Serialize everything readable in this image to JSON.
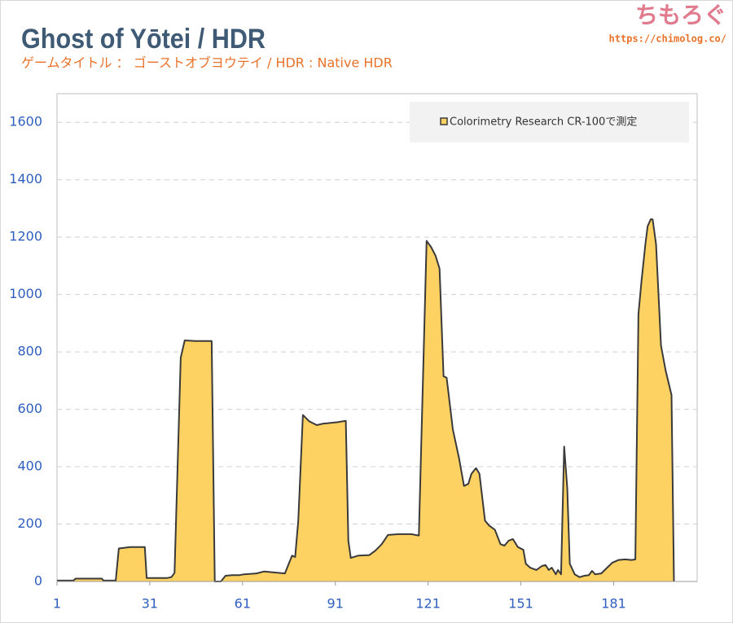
{
  "chart_data": {
    "type": "area",
    "title": "Ghost of Yōtei / HDR",
    "subtitle": "ゲームタイトル ： ゴーストオブヨウテイ / HDR : Native HDR",
    "branding": {
      "logo": "ちもろぐ",
      "url": "https://chimolog.co/"
    },
    "x": [
      1,
      6.3,
      7,
      15.5,
      16,
      20,
      21,
      24.7,
      29.4,
      30,
      36.5,
      38,
      39,
      41,
      42.3,
      45.7,
      51,
      52,
      54,
      55.5,
      57.6,
      60,
      61.5,
      65.5,
      68,
      70.7,
      74.7,
      77,
      78,
      79,
      80.5,
      82.6,
      85,
      87,
      91.8,
      94.4,
      95.2,
      96,
      98.4,
      102,
      104,
      106,
      108,
      111.5,
      115.5,
      118,
      120.5,
      122,
      123.4,
      124.7,
      126,
      127,
      129,
      131,
      132.6,
      134,
      135,
      136.5,
      137.6,
      139.4,
      140.7,
      142.6,
      144.4,
      145.7,
      147,
      148.4,
      150,
      151.8,
      152.6,
      154,
      156,
      157.8,
      159,
      160,
      161,
      162.3,
      163,
      164,
      165,
      166,
      166.8,
      168.4,
      170,
      171.5,
      173,
      174,
      175,
      177,
      178.6,
      180.5,
      182.6,
      184.7,
      186.8,
      188,
      189,
      190,
      191.3,
      192,
      193,
      193.6,
      194.7,
      196.3,
      197.8,
      199.7,
      200.5
    ],
    "series": [
      {
        "name": "Colorimetry Research CR-100で測定",
        "color": "#fdd262",
        "line_color": "#3a3a3a",
        "values": [
          3,
          3,
          10,
          10,
          3,
          3,
          115,
          120,
          120,
          12,
          12,
          15,
          30,
          780,
          840,
          838,
          838,
          0,
          0,
          20,
          22,
          22,
          25,
          28,
          35,
          32,
          28,
          90,
          85,
          210,
          580,
          558,
          545,
          550,
          555,
          560,
          142,
          82,
          90,
          92,
          108,
          130,
          162,
          165,
          165,
          160,
          1187,
          1165,
          1135,
          1090,
          715,
          710,
          530,
          430,
          333,
          340,
          375,
          395,
          375,
          212,
          195,
          180,
          130,
          125,
          142,
          148,
          120,
          110,
          62,
          48,
          40,
          54,
          57,
          40,
          48,
          25,
          40,
          25,
          470,
          325,
          62,
          25,
          15,
          20,
          22,
          37,
          25,
          28,
          45,
          65,
          75,
          77,
          75,
          77,
          932,
          1048,
          1180,
          1238,
          1262,
          1262,
          1176,
          822,
          735,
          650,
          0
        ]
      }
    ],
    "xlim": [
      1,
      208
    ],
    "xticks": [
      1,
      31,
      61,
      91,
      121,
      151,
      181
    ],
    "ylim": [
      0,
      1700
    ],
    "yticks": [
      0,
      200,
      400,
      600,
      800,
      1000,
      1200,
      1400,
      1600
    ],
    "grid": true,
    "legend": "top-right"
  }
}
